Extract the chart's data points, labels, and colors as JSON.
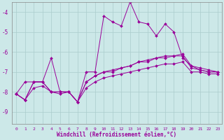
{
  "x": [
    0,
    1,
    2,
    3,
    4,
    5,
    6,
    7,
    8,
    9,
    10,
    11,
    12,
    13,
    14,
    15,
    16,
    17,
    18,
    19,
    20,
    21,
    22,
    23
  ],
  "line1": [
    -8.1,
    -7.5,
    -7.5,
    -7.5,
    -6.3,
    -8.0,
    -8.0,
    -8.5,
    -7.0,
    -7.0,
    -4.2,
    -4.5,
    -4.7,
    -3.5,
    -4.5,
    -4.6,
    -5.2,
    -4.6,
    -5.0,
    -6.3,
    -6.7,
    -6.8,
    -6.9,
    -7.0
  ],
  "line2": [
    -8.1,
    -8.4,
    -7.5,
    -7.5,
    -8.0,
    -8.0,
    -8.0,
    -8.5,
    -7.5,
    -7.2,
    -7.0,
    -7.0,
    -6.8,
    -6.7,
    -6.5,
    -6.5,
    -6.3,
    -6.3,
    -6.2,
    -6.2,
    -6.8,
    -6.9,
    -7.0,
    -7.0
  ],
  "line3": [
    -8.1,
    -8.4,
    -7.5,
    -7.5,
    -8.0,
    -8.0,
    -8.0,
    -8.5,
    -7.5,
    -7.2,
    -7.0,
    -6.9,
    -6.8,
    -6.7,
    -6.5,
    -6.4,
    -6.3,
    -6.2,
    -6.2,
    -6.1,
    -6.7,
    -6.9,
    -7.0,
    -7.0
  ],
  "line4": [
    -8.1,
    -8.4,
    -7.8,
    -7.7,
    -8.0,
    -8.1,
    -8.0,
    -8.5,
    -7.8,
    -7.5,
    -7.3,
    -7.2,
    -7.1,
    -7.0,
    -6.9,
    -6.8,
    -6.7,
    -6.6,
    -6.6,
    -6.5,
    -7.0,
    -7.0,
    -7.1,
    -7.1
  ],
  "color": "#990099",
  "bg_color": "#cce8e8",
  "grid_color": "#aacccc",
  "ylabel_values": [
    -9,
    -8,
    -7,
    -6,
    -5,
    -4
  ],
  "ylim": [
    -9.6,
    -3.5
  ],
  "xlim": [
    -0.5,
    23.5
  ],
  "xlabel": "Windchill (Refroidissement éolien,°C)",
  "marker": "D",
  "markersize": 2.0,
  "linewidth": 0.7
}
